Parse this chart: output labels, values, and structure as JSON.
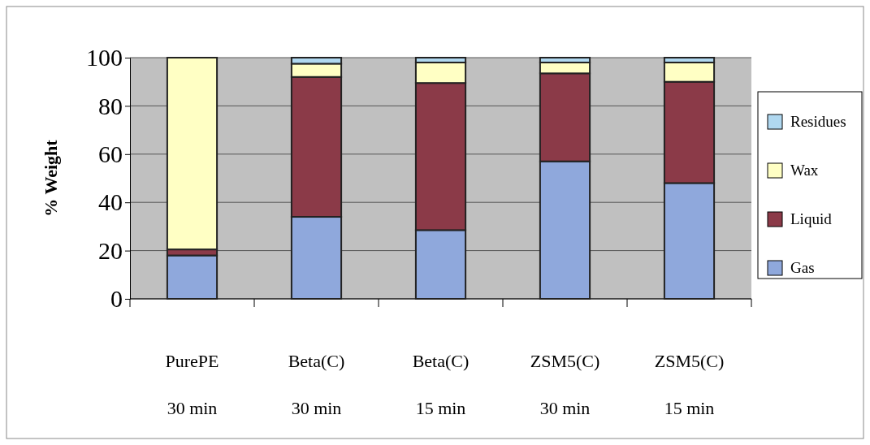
{
  "chart_data": {
    "type": "bar",
    "stacked": true,
    "ylabel": "% Weight",
    "categories": [
      "PurePE\n30 min",
      "Beta(C)\n30 min",
      "Beta(C)\n15 min",
      "ZSM5(C)\n30 min",
      "ZSM5(C)\n15 min"
    ],
    "series": [
      {
        "name": "Gas",
        "color": "#8fa8dc",
        "values": [
          18,
          34,
          28.5,
          57,
          48
        ]
      },
      {
        "name": "Liquid",
        "color": "#8b3a48",
        "values": [
          2.5,
          58,
          61,
          36.5,
          42
        ]
      },
      {
        "name": "Wax",
        "color": "#ffffc4",
        "values": [
          79.5,
          5.5,
          8.5,
          4.5,
          8
        ]
      },
      {
        "name": "Residues",
        "color": "#b0d8f0",
        "values": [
          0,
          2.5,
          2,
          2,
          2
        ]
      }
    ],
    "ylim": [
      0,
      100
    ],
    "yticks": [
      0,
      20,
      40,
      60,
      80,
      100
    ],
    "grid": "y",
    "legend": "right"
  }
}
